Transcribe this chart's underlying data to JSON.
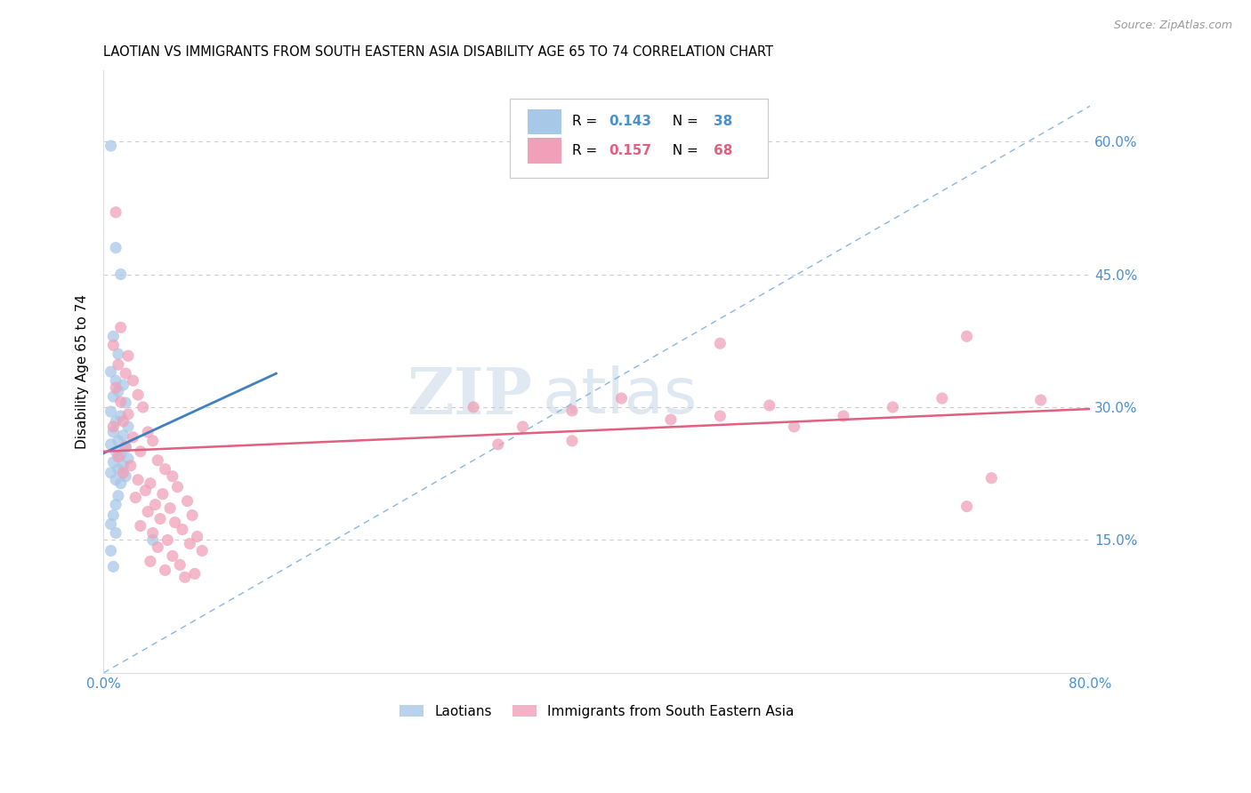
{
  "title": "LAOTIAN VS IMMIGRANTS FROM SOUTH EASTERN ASIA DISABILITY AGE 65 TO 74 CORRELATION CHART",
  "source": "Source: ZipAtlas.com",
  "ylabel": "Disability Age 65 to 74",
  "xlim": [
    0.0,
    0.8
  ],
  "ylim": [
    0.0,
    0.68
  ],
  "blue_color": "#a8c8e8",
  "pink_color": "#f0a0b8",
  "blue_line_color": "#4080c0",
  "pink_line_color": "#e06080",
  "diag_line_color": "#88b8e0",
  "right_axis_color": "#4a90d0",
  "blue_scatter": [
    [
      0.006,
      0.595
    ],
    [
      0.01,
      0.48
    ],
    [
      0.014,
      0.45
    ],
    [
      0.008,
      0.38
    ],
    [
      0.012,
      0.36
    ],
    [
      0.006,
      0.34
    ],
    [
      0.01,
      0.33
    ],
    [
      0.016,
      0.325
    ],
    [
      0.012,
      0.318
    ],
    [
      0.008,
      0.312
    ],
    [
      0.018,
      0.305
    ],
    [
      0.006,
      0.295
    ],
    [
      0.014,
      0.29
    ],
    [
      0.01,
      0.284
    ],
    [
      0.02,
      0.278
    ],
    [
      0.008,
      0.272
    ],
    [
      0.016,
      0.268
    ],
    [
      0.012,
      0.262
    ],
    [
      0.006,
      0.258
    ],
    [
      0.018,
      0.254
    ],
    [
      0.01,
      0.25
    ],
    [
      0.014,
      0.246
    ],
    [
      0.02,
      0.242
    ],
    [
      0.008,
      0.238
    ],
    [
      0.016,
      0.234
    ],
    [
      0.012,
      0.23
    ],
    [
      0.006,
      0.226
    ],
    [
      0.018,
      0.222
    ],
    [
      0.01,
      0.218
    ],
    [
      0.014,
      0.214
    ],
    [
      0.012,
      0.2
    ],
    [
      0.01,
      0.19
    ],
    [
      0.008,
      0.178
    ],
    [
      0.006,
      0.168
    ],
    [
      0.01,
      0.158
    ],
    [
      0.04,
      0.15
    ],
    [
      0.006,
      0.138
    ],
    [
      0.008,
      0.12
    ]
  ],
  "pink_scatter": [
    [
      0.01,
      0.52
    ],
    [
      0.014,
      0.39
    ],
    [
      0.008,
      0.37
    ],
    [
      0.02,
      0.358
    ],
    [
      0.012,
      0.348
    ],
    [
      0.018,
      0.338
    ],
    [
      0.024,
      0.33
    ],
    [
      0.01,
      0.322
    ],
    [
      0.028,
      0.314
    ],
    [
      0.014,
      0.306
    ],
    [
      0.032,
      0.3
    ],
    [
      0.02,
      0.292
    ],
    [
      0.016,
      0.284
    ],
    [
      0.008,
      0.278
    ],
    [
      0.036,
      0.272
    ],
    [
      0.024,
      0.266
    ],
    [
      0.04,
      0.262
    ],
    [
      0.018,
      0.256
    ],
    [
      0.03,
      0.25
    ],
    [
      0.012,
      0.244
    ],
    [
      0.044,
      0.24
    ],
    [
      0.022,
      0.234
    ],
    [
      0.05,
      0.23
    ],
    [
      0.016,
      0.226
    ],
    [
      0.056,
      0.222
    ],
    [
      0.028,
      0.218
    ],
    [
      0.038,
      0.214
    ],
    [
      0.06,
      0.21
    ],
    [
      0.034,
      0.206
    ],
    [
      0.048,
      0.202
    ],
    [
      0.026,
      0.198
    ],
    [
      0.068,
      0.194
    ],
    [
      0.042,
      0.19
    ],
    [
      0.054,
      0.186
    ],
    [
      0.036,
      0.182
    ],
    [
      0.072,
      0.178
    ],
    [
      0.046,
      0.174
    ],
    [
      0.058,
      0.17
    ],
    [
      0.03,
      0.166
    ],
    [
      0.064,
      0.162
    ],
    [
      0.04,
      0.158
    ],
    [
      0.076,
      0.154
    ],
    [
      0.052,
      0.15
    ],
    [
      0.07,
      0.146
    ],
    [
      0.044,
      0.142
    ],
    [
      0.08,
      0.138
    ],
    [
      0.056,
      0.132
    ],
    [
      0.038,
      0.126
    ],
    [
      0.062,
      0.122
    ],
    [
      0.05,
      0.116
    ],
    [
      0.074,
      0.112
    ],
    [
      0.066,
      0.108
    ],
    [
      0.3,
      0.3
    ],
    [
      0.34,
      0.278
    ],
    [
      0.38,
      0.296
    ],
    [
      0.32,
      0.258
    ],
    [
      0.42,
      0.31
    ],
    [
      0.38,
      0.262
    ],
    [
      0.5,
      0.372
    ],
    [
      0.46,
      0.286
    ],
    [
      0.5,
      0.29
    ],
    [
      0.54,
      0.302
    ],
    [
      0.56,
      0.278
    ],
    [
      0.6,
      0.29
    ],
    [
      0.64,
      0.3
    ],
    [
      0.68,
      0.31
    ],
    [
      0.7,
      0.38
    ],
    [
      0.72,
      0.22
    ],
    [
      0.76,
      0.308
    ],
    [
      0.7,
      0.188
    ]
  ]
}
